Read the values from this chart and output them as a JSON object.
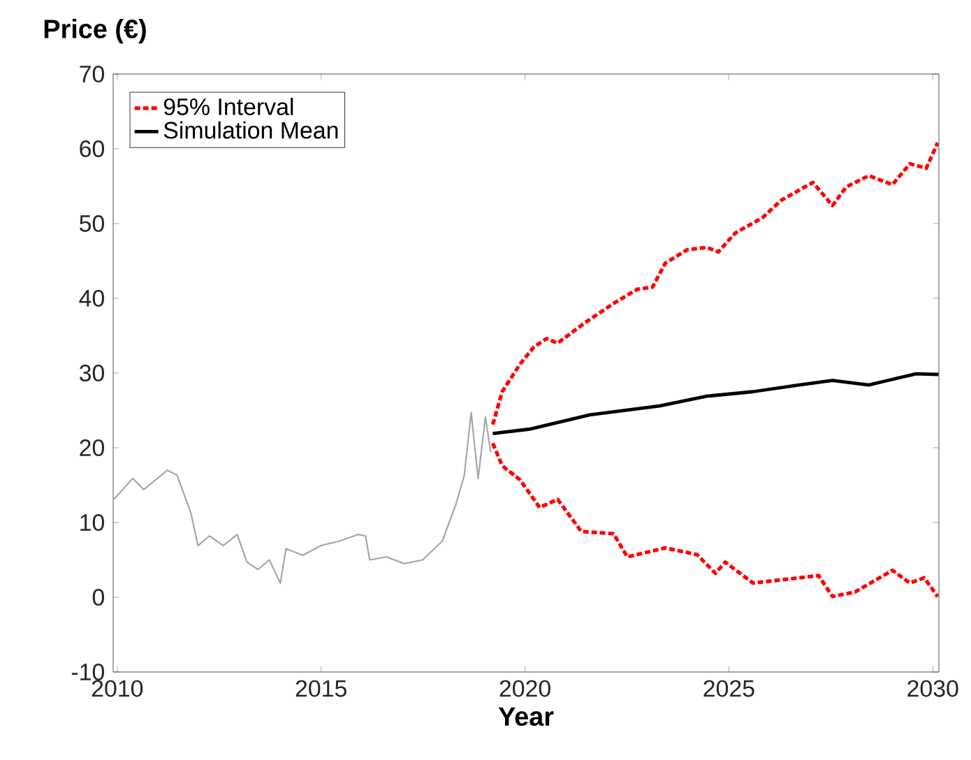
{
  "chart_data": {
    "type": "line",
    "xlabel": "Year",
    "ylabel": "Price (€)",
    "xlim": [
      2009.9,
      2030.15
    ],
    "ylim": [
      -10,
      70
    ],
    "xticks": [
      2010,
      2015,
      2020,
      2025,
      2030
    ],
    "yticks": [
      -10,
      0,
      10,
      20,
      30,
      40,
      50,
      60,
      70
    ],
    "grid": false,
    "legend": "top left",
    "marker": "none",
    "series": [
      {
        "color": "#a6a6a6",
        "line_style": "solid",
        "x": [
          2009.92,
          2010.38,
          2010.65,
          2011.23,
          2011.47,
          2011.81,
          2011.98,
          2012.26,
          2012.6,
          2012.94,
          2013.18,
          2013.45,
          2013.73,
          2014.0,
          2014.14,
          2014.55,
          2014.99,
          2015.44,
          2015.91,
          2016.09,
          2016.19,
          2016.6,
          2017.04,
          2017.49,
          2017.97,
          2018.31,
          2018.51,
          2018.68,
          2018.85,
          2019.03,
          2019.16
        ],
        "values": [
          13.1,
          15.9,
          14.4,
          17.0,
          16.3,
          11.2,
          6.9,
          8.2,
          6.9,
          8.4,
          4.7,
          3.7,
          5.0,
          1.9,
          6.5,
          5.6,
          6.9,
          7.5,
          8.4,
          8.2,
          5.0,
          5.4,
          4.5,
          5.0,
          7.5,
          12.5,
          16.3,
          24.7,
          15.9,
          24.1,
          19.4
        ]
      },
      {
        "name": "95% Interval",
        "color": "#ff0000",
        "line_style": "dashed",
        "x": [
          2019.21,
          2019.44,
          2019.88,
          2020.22,
          2020.53,
          2020.8,
          2021.49,
          2022.17,
          2022.75,
          2023.13,
          2023.44,
          2023.98,
          2024.46,
          2024.74,
          2025.15,
          2025.83,
          2026.28,
          2027.06,
          2027.54,
          2027.88,
          2028.43,
          2029.01,
          2029.44,
          2029.84,
          2030.12
        ],
        "values": [
          23.1,
          27.5,
          31.2,
          33.5,
          34.6,
          34.0,
          36.8,
          39.3,
          41.2,
          41.5,
          44.7,
          46.5,
          46.8,
          46.2,
          48.7,
          50.8,
          53.1,
          55.5,
          52.4,
          54.9,
          56.4,
          55.2,
          58.0,
          57.4,
          60.8
        ]
      },
      {
        "color": "#ff0000",
        "line_style": "dashed",
        "x": [
          2019.21,
          2019.44,
          2019.88,
          2020.36,
          2020.8,
          2021.38,
          2022.17,
          2022.51,
          2023.44,
          2024.22,
          2024.67,
          2024.91,
          2025.59,
          2026.72,
          2027.2,
          2027.54,
          2028.09,
          2029.01,
          2029.44,
          2029.79,
          2030.12
        ],
        "values": [
          20.6,
          17.6,
          15.7,
          12.0,
          13.1,
          8.8,
          8.5,
          5.4,
          6.6,
          5.7,
          3.2,
          4.7,
          1.9,
          2.6,
          2.9,
          0.1,
          0.7,
          3.6,
          1.9,
          2.6,
          0.1
        ]
      },
      {
        "name": "Simulation Mean",
        "color": "#000000",
        "line_style": "solid",
        "x": [
          2019.21,
          2020.12,
          2021.59,
          2023.3,
          2024.46,
          2025.59,
          2026.72,
          2027.54,
          2028.43,
          2029.59,
          2030.14
        ],
        "values": [
          21.9,
          22.5,
          24.4,
          25.6,
          26.9,
          27.5,
          28.4,
          29.0,
          28.4,
          29.9,
          29.8
        ]
      }
    ]
  }
}
